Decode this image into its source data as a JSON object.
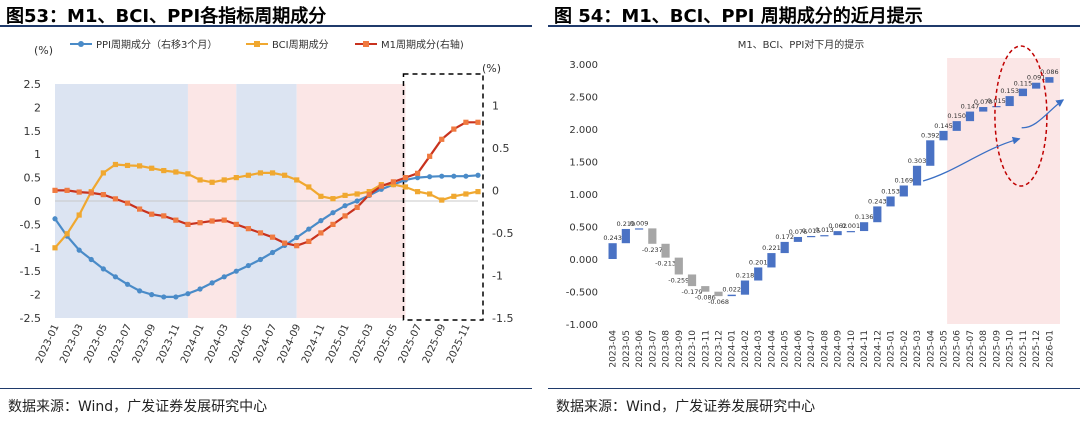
{
  "left": {
    "title": "图53：M1、BCI、PPI各指标周期成分",
    "source": "数据来源：Wind，广发证券发展研究中心",
    "left_unit": "(%)",
    "right_unit": "(%)"
  },
  "right": {
    "title": "图 54：M1、BCI、PPI 周期成分的近月提示",
    "source": "数据来源：Wind，广发证券发展研究中心"
  },
  "colors": {
    "ppi": "#4a8bc8",
    "bci": "#f0a830",
    "m1": "#c8321e",
    "m1_marker": "#f07a40",
    "shade_blue": "#dce4f2",
    "shade_pink": "#fbe6e6",
    "bar_up": "#4a72c4",
    "bar_down": "#a6a6a6",
    "rule": "#1f3a6b"
  },
  "chart_data": [
    {
      "type": "line",
      "title": "",
      "x": [
        "2023-01",
        "2023-02",
        "2023-03",
        "2023-04",
        "2023-05",
        "2023-06",
        "2023-07",
        "2023-08",
        "2023-09",
        "2023-10",
        "2023-11",
        "2023-12",
        "2024-01",
        "2024-02",
        "2024-03",
        "2024-04",
        "2024-05",
        "2024-06",
        "2024-07",
        "2024-08",
        "2024-09",
        "2024-10",
        "2024-11",
        "2024-12",
        "2025-01",
        "2025-02",
        "2025-03",
        "2025-04",
        "2025-05",
        "2025-06",
        "2025-07",
        "2025-08",
        "2025-09",
        "2025-10",
        "2025-11",
        "2025-12"
      ],
      "x_tick_labels": [
        "2023-01",
        "2023-03",
        "2023-05",
        "2023-07",
        "2023-09",
        "2023-11",
        "2024-01",
        "2024-03",
        "2024-05",
        "2024-07",
        "2024-09",
        "2024-11",
        "2025-01",
        "2025-03",
        "2025-05",
        "2025-07",
        "2025-09",
        "2025-11"
      ],
      "ylim_left": [
        -2.5,
        2.5
      ],
      "yticks_left": [
        "2.5",
        "2",
        "1.5",
        "1",
        "0.5",
        "0",
        "-0.5",
        "-1",
        "-1.5",
        "-2",
        "-2.5"
      ],
      "ylim_right": [
        -1.5,
        1.25
      ],
      "yticks_right": [
        "1",
        "0.5",
        "0",
        "-0.5",
        "-1",
        "-1.5"
      ],
      "legend": [
        "PPI周期成分（右移3个月）",
        "BCI周期成分",
        "M1周期成分(右轴)"
      ],
      "legend_position": "top",
      "shaded_periods": [
        {
          "from": "2023-01",
          "to": "2023-12",
          "color": "blue"
        },
        {
          "from": "2023-12",
          "to": "2024-04",
          "color": "pink"
        },
        {
          "from": "2024-04",
          "to": "2024-09",
          "color": "blue"
        },
        {
          "from": "2024-09",
          "to": "2025-06",
          "color": "pink"
        }
      ],
      "highlight_box": {
        "from": "2025-06",
        "to": "2025-12"
      },
      "series": [
        {
          "name": "PPI周期成分（右移3个月）",
          "axis": "left",
          "values": [
            -0.38,
            -0.75,
            -1.05,
            -1.25,
            -1.45,
            -1.62,
            -1.78,
            -1.92,
            -2.0,
            -2.05,
            -2.05,
            -1.98,
            -1.88,
            -1.75,
            -1.62,
            -1.5,
            -1.38,
            -1.25,
            -1.1,
            -0.95,
            -0.78,
            -0.6,
            -0.42,
            -0.25,
            -0.1,
            0.0,
            0.12,
            0.25,
            0.35,
            0.45,
            0.5,
            0.52,
            0.53,
            0.53,
            0.53,
            0.55
          ]
        },
        {
          "name": "BCI周期成分",
          "axis": "left",
          "values": [
            -1.0,
            -0.7,
            -0.3,
            0.2,
            0.6,
            0.78,
            0.76,
            0.75,
            0.7,
            0.65,
            0.62,
            0.58,
            0.45,
            0.4,
            0.45,
            0.5,
            0.55,
            0.6,
            0.6,
            0.55,
            0.45,
            0.3,
            0.1,
            0.05,
            0.12,
            0.15,
            0.2,
            0.35,
            0.35,
            0.3,
            0.2,
            0.15,
            0.02,
            0.1,
            0.15,
            0.2
          ]
        },
        {
          "name": "M1周期成分(右轴)",
          "axis": "right",
          "values": [
            0.0,
            0.0,
            -0.02,
            -0.03,
            -0.05,
            -0.1,
            -0.15,
            -0.22,
            -0.28,
            -0.3,
            -0.35,
            -0.4,
            -0.38,
            -0.36,
            -0.35,
            -0.4,
            -0.45,
            -0.5,
            -0.55,
            -0.62,
            -0.65,
            -0.6,
            -0.5,
            -0.4,
            -0.3,
            -0.2,
            -0.05,
            0.05,
            0.1,
            0.15,
            0.2,
            0.4,
            0.6,
            0.72,
            0.8,
            0.8
          ]
        }
      ]
    },
    {
      "type": "bar",
      "subtype": "waterfall",
      "title": "M1、BCI、PPI对下月的提示",
      "categories": [
        "2023-04",
        "2023-05",
        "2023-06",
        "2023-07",
        "2023-08",
        "2023-09",
        "2023-10",
        "2023-11",
        "2023-12",
        "2024-01",
        "2024-02",
        "2024-03",
        "2024-04",
        "2024-05",
        "2024-06",
        "2024-07",
        "2024-08",
        "2024-09",
        "2024-10",
        "2024-11",
        "2024-12",
        "2025-01",
        "2025-02",
        "2025-03",
        "2025-04",
        "2025-05",
        "2025-06",
        "2025-07",
        "2025-08",
        "2025-09",
        "2025-10",
        "2025-11",
        "2025-12",
        "2026-01"
      ],
      "ylim": [
        -1.0,
        3.0
      ],
      "yticks": [
        "3.000",
        "2.500",
        "2.000",
        "1.500",
        "1.000",
        "0.500",
        "0.000",
        "-0.500",
        "-1.000"
      ],
      "bars": [
        {
          "start": 0.0,
          "end": 0.243,
          "label": "0.243"
        },
        {
          "start": 0.243,
          "end": 0.462,
          "label": "0.219"
        },
        {
          "start": 0.462,
          "end": 0.471,
          "label": "0.009"
        },
        {
          "start": 0.471,
          "end": 0.234,
          "label": "-0.237"
        },
        {
          "start": 0.234,
          "end": 0.021,
          "label": "-0.213"
        },
        {
          "start": 0.021,
          "end": -0.238,
          "label": "-0.259"
        },
        {
          "start": -0.238,
          "end": -0.417,
          "label": "-0.179"
        },
        {
          "start": -0.417,
          "end": -0.503,
          "label": "-0.086"
        },
        {
          "start": -0.503,
          "end": -0.571,
          "label": "-0.068"
        },
        {
          "start": -0.571,
          "end": -0.549,
          "label": "0.022"
        },
        {
          "start": -0.549,
          "end": -0.331,
          "label": "0.218"
        },
        {
          "start": -0.331,
          "end": -0.13,
          "label": "0.201"
        },
        {
          "start": -0.13,
          "end": 0.091,
          "label": "0.221"
        },
        {
          "start": 0.091,
          "end": 0.263,
          "label": "0.172"
        },
        {
          "start": 0.263,
          "end": 0.339,
          "label": "0.076"
        },
        {
          "start": 0.339,
          "end": 0.354,
          "label": "0.015"
        },
        {
          "start": 0.354,
          "end": 0.367,
          "label": "0.013"
        },
        {
          "start": 0.367,
          "end": 0.429,
          "label": "0.062"
        },
        {
          "start": 0.429,
          "end": 0.43,
          "label": "0.001"
        },
        {
          "start": 0.43,
          "end": 0.566,
          "label": "0.136"
        },
        {
          "start": 0.566,
          "end": 0.809,
          "label": "0.243"
        },
        {
          "start": 0.809,
          "end": 0.962,
          "label": "0.153"
        },
        {
          "start": 0.962,
          "end": 1.131,
          "label": "0.169"
        },
        {
          "start": 1.131,
          "end": 1.434,
          "label": "0.303"
        },
        {
          "start": 1.434,
          "end": 1.826,
          "label": "0.392"
        },
        {
          "start": 1.826,
          "end": 1.971,
          "label": "0.145"
        },
        {
          "start": 1.971,
          "end": 2.121,
          "label": "0.150"
        },
        {
          "start": 2.121,
          "end": 2.268,
          "label": "0.147"
        },
        {
          "start": 2.268,
          "end": 2.338,
          "label": "0.070"
        },
        {
          "start": 2.338,
          "end": 2.353,
          "label": "0.015"
        },
        {
          "start": 2.353,
          "end": 2.506,
          "label": "0.153"
        },
        {
          "start": 2.506,
          "end": 2.621,
          "label": "0.115"
        },
        {
          "start": 2.621,
          "end": 2.712,
          "label": "0.091"
        },
        {
          "start": 2.712,
          "end": 2.798,
          "label": "0.086"
        }
      ],
      "highlight_from": "2025-06"
    }
  ]
}
